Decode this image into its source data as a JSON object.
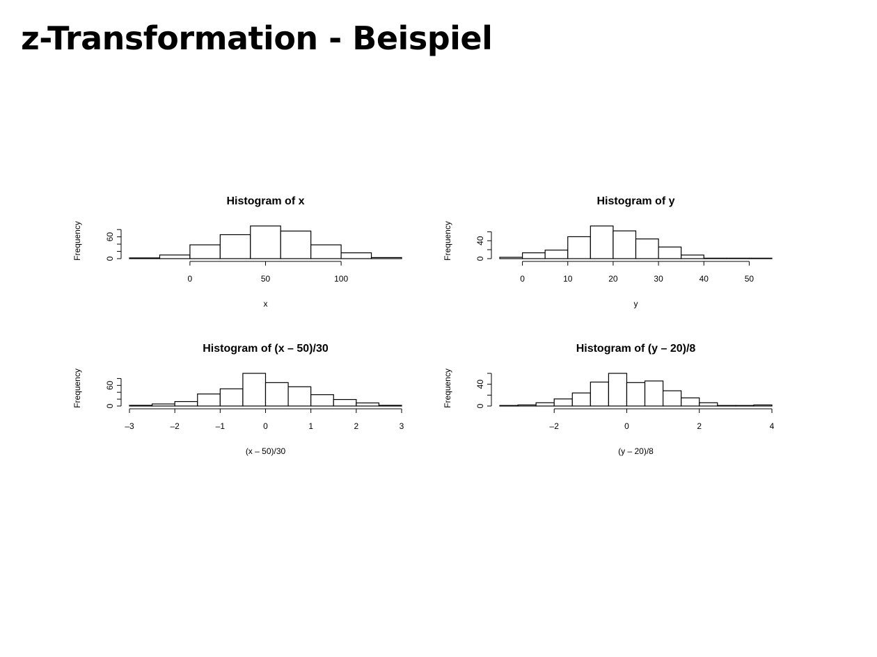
{
  "slide": {
    "title": "z-Transformation - Beispiel"
  },
  "chart_data": [
    {
      "type": "bar",
      "title": "Histogram of x",
      "xlabel": "x",
      "ylabel": "Frequency",
      "bin_edges": [
        -40,
        -20,
        0,
        20,
        40,
        60,
        80,
        100,
        120,
        140
      ],
      "values": [
        2,
        10,
        38,
        66,
        90,
        76,
        38,
        16,
        3
      ],
      "xlim": [
        -40,
        140
      ],
      "ylim": [
        0,
        90
      ],
      "x_ticks": [
        0,
        50,
        100
      ],
      "x_tick_labels": [
        "0",
        "50",
        "100"
      ],
      "y_ticks": [
        0,
        20,
        40,
        60,
        80
      ],
      "y_tick_labels": [
        "0",
        "60"
      ],
      "y_tick_labels_at": [
        0,
        60
      ]
    },
    {
      "type": "bar",
      "title": "Histogram of y",
      "xlabel": "y",
      "ylabel": "Frequency",
      "bin_edges": [
        -5,
        0,
        5,
        10,
        15,
        20,
        25,
        30,
        35,
        40,
        45,
        50,
        55
      ],
      "values": [
        3,
        13,
        19,
        49,
        73,
        62,
        44,
        26,
        8,
        1,
        1,
        1
      ],
      "xlim": [
        -5,
        55
      ],
      "ylim": [
        0,
        73
      ],
      "x_ticks": [
        0,
        10,
        20,
        30,
        40,
        50
      ],
      "x_tick_labels": [
        "0",
        "10",
        "20",
        "30",
        "40",
        "50"
      ],
      "y_ticks": [
        0,
        20,
        40,
        60
      ],
      "y_tick_labels": [
        "0",
        "40"
      ],
      "y_tick_labels_at": [
        0,
        40
      ]
    },
    {
      "type": "bar",
      "title": "Histogram of (x – 50)/30",
      "xlabel": "(x – 50)/30",
      "ylabel": "Frequency",
      "bin_edges": [
        -3,
        -2.5,
        -2,
        -1.5,
        -1,
        -0.5,
        0,
        0.5,
        1,
        1.5,
        2,
        2.5,
        3
      ],
      "values": [
        2,
        6,
        13,
        35,
        50,
        95,
        68,
        56,
        33,
        19,
        9,
        2
      ],
      "xlim": [
        -3,
        3
      ],
      "ylim": [
        0,
        95
      ],
      "x_ticks": [
        -3,
        -2,
        -1,
        0,
        1,
        2,
        3
      ],
      "x_tick_labels": [
        "–3",
        "–2",
        "–1",
        "0",
        "1",
        "2",
        "3"
      ],
      "y_ticks": [
        0,
        20,
        40,
        60,
        80
      ],
      "y_tick_labels": [
        "0",
        "60"
      ],
      "y_tick_labels_at": [
        0,
        60
      ]
    },
    {
      "type": "bar",
      "title": "Histogram of (y – 20)/8",
      "xlabel": "(y – 20)/8",
      "ylabel": "Frequency",
      "bin_edges": [
        -3.5,
        -3,
        -2.5,
        -2,
        -1.5,
        -1,
        -0.5,
        0,
        0.5,
        1,
        1.5,
        2,
        2.5,
        3,
        3.5,
        4
      ],
      "values": [
        1,
        2,
        6,
        13,
        24,
        44,
        60,
        43,
        46,
        28,
        15,
        6,
        1,
        1,
        2
      ],
      "xlim": [
        -3.5,
        4
      ],
      "ylim": [
        0,
        60
      ],
      "x_ticks": [
        -2,
        0,
        2,
        4
      ],
      "x_tick_labels": [
        "–2",
        "0",
        "2",
        "4"
      ],
      "y_ticks": [
        0,
        20,
        40,
        60
      ],
      "y_tick_labels": [
        "0",
        "40"
      ],
      "y_tick_labels_at": [
        0,
        40
      ]
    }
  ]
}
